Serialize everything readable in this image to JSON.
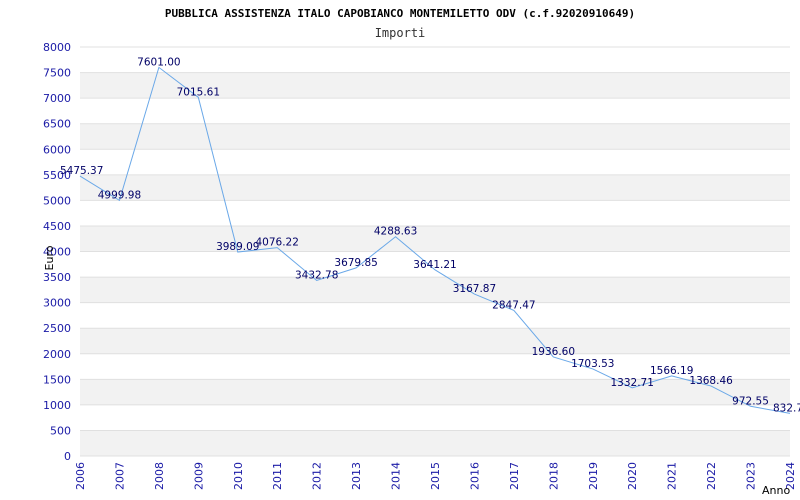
{
  "chart_data": {
    "type": "line",
    "title": "PUBBLICA ASSISTENZA ITALO CAPOBIANCO MONTEMILETTO ODV (c.f.92020910649)",
    "subtitle": "Importi",
    "xlabel": "Anno",
    "ylabel": "Euro",
    "ylim": [
      0,
      8000
    ],
    "yticks": [
      0,
      500,
      1000,
      1500,
      2000,
      2500,
      3000,
      3500,
      4000,
      4500,
      5000,
      5500,
      6000,
      6500,
      7000,
      7500,
      8000
    ],
    "categories": [
      "2006",
      "2007",
      "2008",
      "2009",
      "2010",
      "2011",
      "2012",
      "2013",
      "2014",
      "2015",
      "2016",
      "2017",
      "2018",
      "2019",
      "2020",
      "2021",
      "2022",
      "2023",
      "2024"
    ],
    "values": [
      5475.37,
      4999.98,
      7601.0,
      7015.61,
      3989.09,
      4076.22,
      3432.78,
      3679.85,
      4288.63,
      3641.21,
      3167.87,
      2847.47,
      1936.6,
      1703.53,
      1332.71,
      1566.19,
      1368.46,
      972.55,
      832.7
    ],
    "data_labels": [
      "5475.37",
      "4999.98",
      "7601.00",
      "7015.61",
      "3989.09",
      "4076.22",
      "3432.78",
      "3679.85",
      "4288.63",
      "3641.21",
      "3167.87",
      "2847.47",
      "1936.60",
      "1703.53",
      "1332.71",
      "1566.19",
      "1368.46",
      "972.55",
      "832.7"
    ],
    "colors": {
      "line": "#6aa8e8",
      "band": "#f2f2f2",
      "grid": "#e0e0e0",
      "tick_text": "#1a1aa6",
      "label_text": "#000066"
    },
    "grid": true,
    "legend": "none"
  }
}
